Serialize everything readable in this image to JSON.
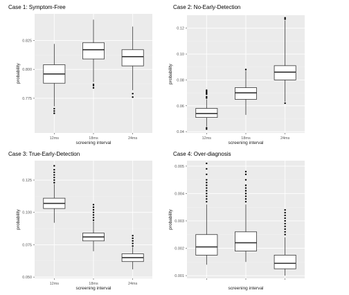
{
  "chart_data": [
    {
      "type": "boxplot",
      "title": "Case 1: Symptom-Free",
      "xlabel": "screening interval",
      "ylabel": "probability",
      "categories": [
        "12ms",
        "18ms",
        "24ms"
      ],
      "ylim": [
        0.745,
        0.848
      ],
      "yticks": [
        0.775,
        0.8,
        0.825
      ],
      "ytick_labels": [
        "0.775",
        "0.800",
        "0.825"
      ],
      "boxes": [
        {
          "category": "12ms",
          "whisker_low": 0.768,
          "q1": 0.788,
          "median": 0.796,
          "q3": 0.804,
          "whisker_high": 0.822,
          "outliers": [
            0.766,
            0.764,
            0.762
          ]
        },
        {
          "category": "18ms",
          "whisker_low": 0.789,
          "q1": 0.809,
          "median": 0.817,
          "q3": 0.823,
          "whisker_high": 0.843,
          "outliers": [
            0.787,
            0.786,
            0.784
          ]
        },
        {
          "category": "24ms",
          "whisker_low": 0.782,
          "q1": 0.803,
          "median": 0.811,
          "q3": 0.817,
          "whisker_high": 0.837,
          "outliers": [
            0.779,
            0.776
          ]
        }
      ]
    },
    {
      "type": "boxplot",
      "title": "Case 2: No-Early-Detection",
      "xlabel": "screening interval",
      "ylabel": "probability",
      "categories": [
        "12ms",
        "18ms",
        "24ms"
      ],
      "ylim": [
        0.039,
        0.13
      ],
      "yticks": [
        0.04,
        0.06,
        0.08,
        0.1,
        0.12
      ],
      "ytick_labels": [
        "0.04",
        "0.06",
        "0.08",
        "0.10",
        "0.12"
      ],
      "boxes": [
        {
          "category": "12ms",
          "whisker_low": 0.044,
          "q1": 0.051,
          "median": 0.054,
          "q3": 0.058,
          "whisker_high": 0.065,
          "outliers": [
            0.066,
            0.067,
            0.069,
            0.07,
            0.071,
            0.072,
            0.043,
            0.042
          ]
        },
        {
          "category": "18ms",
          "whisker_low": 0.053,
          "q1": 0.065,
          "median": 0.07,
          "q3": 0.074,
          "whisker_high": 0.087,
          "outliers": [
            0.088
          ]
        },
        {
          "category": "24ms",
          "whisker_low": 0.063,
          "q1": 0.08,
          "median": 0.086,
          "q3": 0.091,
          "whisker_high": 0.126,
          "outliers": [
            0.062,
            0.127,
            0.128
          ]
        }
      ]
    },
    {
      "type": "boxplot",
      "title": "Case 3: True-Early-Detection",
      "xlabel": "screening interval",
      "ylabel": "probability",
      "categories": [
        "12ms",
        "18ms",
        "24ms"
      ],
      "ylim": [
        0.049,
        0.14
      ],
      "yticks": [
        0.05,
        0.075,
        0.1,
        0.125
      ],
      "ytick_labels": [
        "0.050",
        "0.075",
        "0.100",
        "0.125"
      ],
      "boxes": [
        {
          "category": "12ms",
          "whisker_low": 0.092,
          "q1": 0.103,
          "median": 0.107,
          "q3": 0.111,
          "whisker_high": 0.122,
          "outliers": [
            0.123,
            0.125,
            0.127,
            0.129,
            0.131,
            0.133,
            0.136
          ]
        },
        {
          "category": "18ms",
          "whisker_low": 0.07,
          "q1": 0.078,
          "median": 0.081,
          "q3": 0.084,
          "whisker_high": 0.093,
          "outliers": [
            0.094,
            0.096,
            0.098,
            0.1,
            0.102,
            0.104,
            0.106
          ]
        },
        {
          "category": "24ms",
          "whisker_low": 0.056,
          "q1": 0.062,
          "median": 0.065,
          "q3": 0.068,
          "whisker_high": 0.073,
          "outliers": [
            0.074,
            0.076,
            0.078,
            0.08,
            0.082
          ]
        }
      ]
    },
    {
      "type": "boxplot",
      "title": "Case 4: Over-diagnosis",
      "xlabel": "screening interval",
      "ylabel": "probability",
      "categories": [
        "",
        "",
        ""
      ],
      "ylim": [
        0.0009,
        0.0052
      ],
      "yticks": [
        0.001,
        0.002,
        0.003,
        0.004,
        0.005
      ],
      "ytick_labels": [
        "0.001",
        "0.002",
        "0.003",
        "0.004",
        "0.005"
      ],
      "boxes": [
        {
          "whisker_low": 0.0014,
          "q1": 0.00175,
          "median": 0.00205,
          "q3": 0.0025,
          "whisker_high": 0.0036,
          "outliers": [
            0.0037,
            0.0038,
            0.0039,
            0.004,
            0.0041,
            0.0042,
            0.0043,
            0.0044,
            0.0045,
            0.0047,
            0.0049,
            0.0051
          ]
        },
        {
          "whisker_low": 0.0015,
          "q1": 0.0019,
          "median": 0.0022,
          "q3": 0.0026,
          "whisker_high": 0.0036,
          "outliers": [
            0.0037,
            0.0038,
            0.0039,
            0.004,
            0.0041,
            0.0042,
            0.0043,
            0.0045,
            0.0047,
            0.0048
          ]
        },
        {
          "whisker_low": 0.001,
          "q1": 0.00125,
          "median": 0.00145,
          "q3": 0.00175,
          "whisker_high": 0.0024,
          "outliers": [
            0.0025,
            0.0026,
            0.0027,
            0.0028,
            0.0029,
            0.003,
            0.0031,
            0.0032,
            0.0033,
            0.0034
          ]
        }
      ]
    }
  ],
  "style": {
    "panel_background": "#ebebeb",
    "grid_major": "#ffffff",
    "grid_minor": "#f3f3f3",
    "box_fill": "#ffffff",
    "line_color": "#333333",
    "point_color": "#000000",
    "tick_label_color": "#555555",
    "title_color": "#000000"
  }
}
